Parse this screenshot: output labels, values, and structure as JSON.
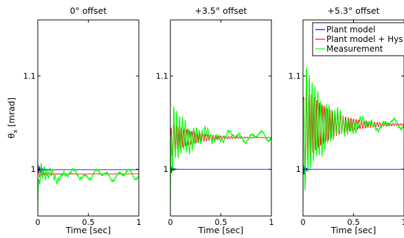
{
  "chart_data": {
    "type": "line",
    "ylabel_main": "θ",
    "ylabel_sub": "x",
    "ylabel_unit": "[mrad]",
    "xlim": [
      0,
      1
    ],
    "ylim": [
      0.95,
      1.16
    ],
    "xticks": [
      0,
      0.5,
      1
    ],
    "xtick_labels": [
      "0",
      "0.5",
      "1"
    ],
    "yticks": [
      1,
      1.1
    ],
    "ytick_labels": [
      "1",
      "1.1"
    ],
    "legend": {
      "placement": "top-right",
      "entries": [
        {
          "label": "Plant model",
          "color": "#0000ff"
        },
        {
          "label": "Plant model + Hys",
          "color": "#ff0000"
        },
        {
          "label": "Measurement",
          "color": "#00ff00"
        }
      ]
    },
    "panels": [
      {
        "title": "0° offset",
        "xlabel": "Time [sec]",
        "show_ylabel": true,
        "series": [
          {
            "name": "Plant model",
            "start": 1.0,
            "steady": 0.9995,
            "overshoot": 0.005,
            "decay": 0.04,
            "period": 0.014
          },
          {
            "name": "Plant model + Hys",
            "start": 0.995,
            "steady": 0.995,
            "overshoot": 0.004,
            "decay": 0.08,
            "period": 0.025
          },
          {
            "name": "Measurement",
            "start": 0.955,
            "steady": 0.994,
            "overshoot": 0.01,
            "decay": 0.15,
            "period": 0.028
          }
        ]
      },
      {
        "title": "+3.5° offset",
        "xlabel": "Time [sec]",
        "show_ylabel": false,
        "series": [
          {
            "name": "Plant model",
            "start": 1.0,
            "steady": 1.0,
            "overshoot": 0.006,
            "decay": 0.02,
            "period": 0.012
          },
          {
            "name": "Plant model + Hys",
            "start": 1.02,
            "steady": 1.034,
            "overshoot": 0.018,
            "decay": 0.22,
            "period": 0.026
          },
          {
            "name": "Measurement",
            "start": 0.955,
            "steady": 1.035,
            "overshoot": 0.035,
            "decay": 0.18,
            "period": 0.028
          }
        ]
      },
      {
        "title": "+5.3° offset",
        "xlabel": "Time [sec]",
        "show_ylabel": false,
        "series": [
          {
            "name": "Plant model",
            "start": 1.0,
            "steady": 1.0,
            "overshoot": 0.008,
            "decay": 0.02,
            "period": 0.012
          },
          {
            "name": "Plant model + Hys",
            "start": 1.02,
            "steady": 1.048,
            "overshoot": 0.045,
            "decay": 0.25,
            "period": 0.026
          },
          {
            "name": "Measurement",
            "start": 0.955,
            "steady": 1.048,
            "overshoot": 0.07,
            "decay": 0.2,
            "period": 0.028
          }
        ]
      }
    ]
  }
}
